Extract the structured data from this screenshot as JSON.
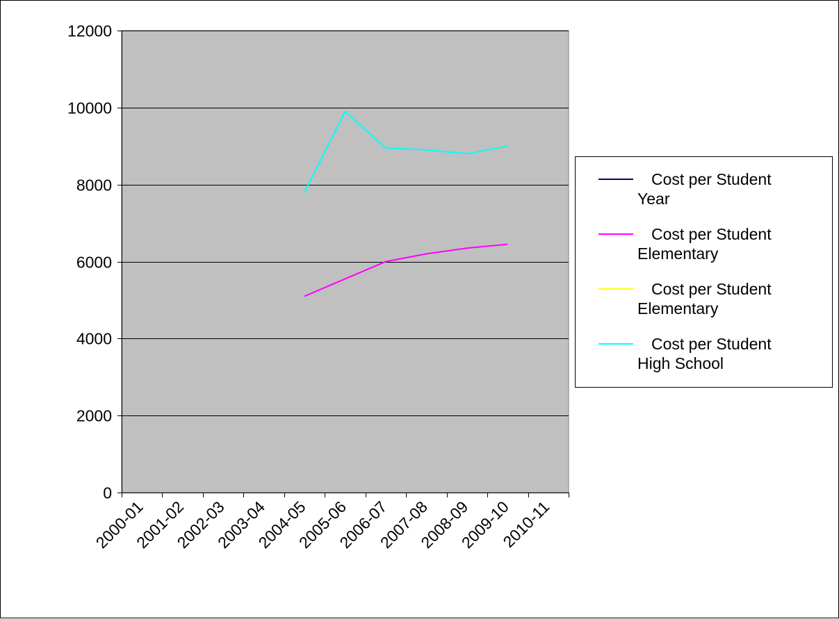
{
  "chart_data": {
    "type": "line",
    "title": "",
    "xlabel": "",
    "ylabel": "",
    "categories": [
      "2000-01",
      "2001-02",
      "2002-03",
      "2003-04",
      "2004-05",
      "2005-06",
      "2006-07",
      "2007-08",
      "2008-09",
      "2009-10",
      "2010-11"
    ],
    "ylim": [
      0,
      12000
    ],
    "yticks": [
      0,
      2000,
      4000,
      6000,
      8000,
      10000,
      12000
    ],
    "grid": "horizontal",
    "plot_background": "#c0c0c0",
    "legend_position": "right",
    "series": [
      {
        "name_lines": [
          "Cost per Student",
          "Year"
        ],
        "color": "#000080",
        "values": [
          null,
          null,
          null,
          null,
          null,
          null,
          null,
          null,
          null,
          null,
          null
        ]
      },
      {
        "name_lines": [
          "Cost per Student",
          "Elementary"
        ],
        "color": "#ff00ff",
        "values": [
          null,
          null,
          null,
          null,
          5100,
          5550,
          6000,
          6200,
          6350,
          6450,
          null
        ]
      },
      {
        "name_lines": [
          "Cost per Student",
          "Elementary"
        ],
        "color": "#ffff00",
        "values": [
          null,
          null,
          null,
          null,
          null,
          null,
          null,
          null,
          null,
          null,
          null
        ]
      },
      {
        "name_lines": [
          "Cost per Student",
          "High School"
        ],
        "color": "#00ffff",
        "values": [
          null,
          null,
          null,
          null,
          7800,
          9900,
          8950,
          8900,
          8800,
          9000,
          null
        ]
      }
    ]
  }
}
